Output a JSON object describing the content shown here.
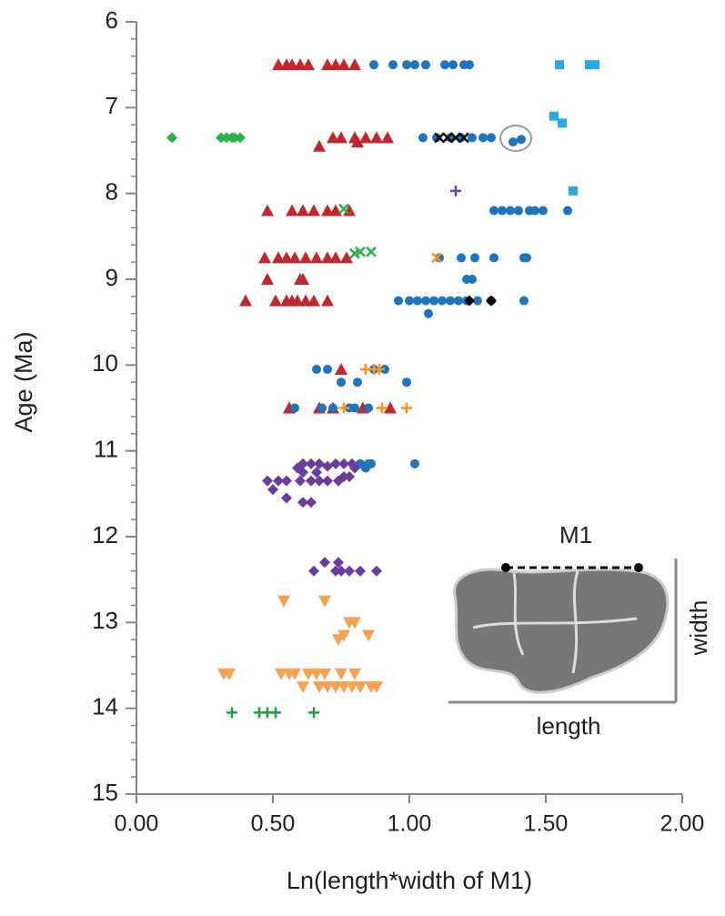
{
  "chart_data": {
    "type": "scatter",
    "x_label": "Ln(length*width of M1)",
    "y_label": "Age (Ma)",
    "xlim": [
      0,
      2
    ],
    "ylim": [
      6,
      15
    ],
    "y_inverted": true,
    "xticks": [
      {
        "value": 0,
        "label": "0.00"
      },
      {
        "value": 0.5,
        "label": "0.50"
      },
      {
        "value": 1,
        "label": "1.00"
      },
      {
        "value": 1.5,
        "label": "1.50"
      },
      {
        "value": 2,
        "label": "2.00"
      }
    ],
    "yticks": [
      6,
      7,
      8,
      9,
      10,
      11,
      12,
      13,
      14,
      15
    ],
    "y_minor_ticks": [
      6.2,
      6.4,
      6.6,
      6.8,
      7.2,
      7.4,
      7.6,
      7.8,
      8.2,
      8.4,
      8.6,
      8.8,
      9.2,
      9.4,
      9.6,
      9.8,
      10.2,
      10.4,
      10.6,
      10.8,
      11.2,
      11.4,
      11.6,
      11.8,
      12.2,
      12.4,
      12.6,
      12.8,
      13.2,
      13.4,
      13.6,
      13.8,
      14.2,
      14.4,
      14.6,
      14.8
    ],
    "inset_labels": {
      "tooth": "M1",
      "width": "width",
      "length": "length"
    },
    "series": [
      {
        "marker": "triangle",
        "color": "#c1272d",
        "x": [
          0.52,
          0.55,
          0.57,
          0.6,
          0.63,
          0.7,
          0.73,
          0.76,
          0.8,
          0.72,
          0.75,
          0.8,
          0.84,
          0.88,
          0.92,
          0.67,
          0.81,
          0.48,
          0.57,
          0.61,
          0.65,
          0.7,
          0.73,
          0.78,
          0.47,
          0.52,
          0.55,
          0.58,
          0.62,
          0.66,
          0.7,
          0.73,
          0.77,
          0.48,
          0.6,
          0.61,
          0.4,
          0.51,
          0.55,
          0.57,
          0.59,
          0.62,
          0.65,
          0.7,
          0.75,
          0.56,
          0.67,
          0.72,
          0.83,
          0.93
        ],
        "values": [
          6.5,
          6.5,
          6.5,
          6.5,
          6.5,
          6.5,
          6.5,
          6.5,
          6.5,
          7.35,
          7.35,
          7.35,
          7.35,
          7.35,
          7.35,
          7.45,
          7.4,
          8.2,
          8.2,
          8.2,
          8.2,
          8.2,
          8.2,
          8.2,
          8.75,
          8.75,
          8.75,
          8.75,
          8.75,
          8.75,
          8.75,
          8.75,
          8.75,
          9.0,
          9.0,
          9.0,
          9.25,
          9.25,
          9.25,
          9.25,
          9.25,
          9.25,
          9.25,
          9.25,
          10.05,
          10.5,
          10.5,
          10.5,
          10.5,
          10.5
        ]
      },
      {
        "marker": "circle",
        "color": "#1f75bc",
        "x": [
          0.87,
          0.94,
          0.99,
          1.02,
          1.06,
          1.13,
          1.16,
          1.2,
          1.22,
          1.05,
          1.1,
          1.15,
          1.19,
          1.23,
          1.27,
          1.3,
          1.38,
          1.41,
          1.31,
          1.34,
          1.37,
          1.4,
          1.44,
          1.46,
          1.49,
          1.58,
          1.11,
          1.19,
          1.24,
          1.31,
          1.42,
          1.43,
          1.21,
          1.23,
          0.96,
          1.0,
          1.03,
          1.06,
          1.09,
          1.12,
          1.15,
          1.18,
          1.21,
          1.25,
          1.3,
          1.42,
          1.07,
          0.66,
          0.7,
          0.87,
          0.91,
          0.75,
          0.81,
          0.99,
          0.58,
          0.68,
          0.72,
          0.78,
          0.8,
          0.85,
          0.82,
          0.85,
          0.86,
          1.02,
          0.84
        ],
        "values": [
          6.5,
          6.5,
          6.5,
          6.5,
          6.5,
          6.5,
          6.5,
          6.5,
          6.5,
          7.35,
          7.35,
          7.35,
          7.35,
          7.35,
          7.35,
          7.35,
          7.4,
          7.37,
          8.2,
          8.2,
          8.2,
          8.2,
          8.2,
          8.2,
          8.2,
          8.2,
          8.75,
          8.75,
          8.75,
          8.75,
          8.75,
          8.75,
          9.0,
          9.0,
          9.25,
          9.25,
          9.25,
          9.25,
          9.25,
          9.25,
          9.25,
          9.25,
          9.25,
          9.25,
          9.25,
          9.25,
          9.4,
          10.05,
          10.05,
          10.05,
          10.05,
          10.2,
          10.2,
          10.2,
          10.5,
          10.5,
          10.5,
          10.5,
          10.5,
          10.5,
          11.15,
          11.15,
          11.15,
          11.15,
          11.2
        ]
      },
      {
        "marker": "square",
        "color": "#29aae1",
        "x": [
          1.55,
          1.66,
          1.68,
          1.53,
          1.56,
          1.6
        ],
        "values": [
          6.5,
          6.5,
          6.5,
          7.1,
          7.18,
          7.97
        ]
      },
      {
        "marker": "diamond",
        "color": "#2bb34a",
        "x": [
          0.13,
          0.31,
          0.33,
          0.35,
          0.36,
          0.38
        ],
        "values": [
          7.35,
          7.35,
          7.35,
          7.35,
          7.35,
          7.35
        ]
      },
      {
        "marker": "x",
        "color": "#2bb34a",
        "x": [
          0.76,
          0.8,
          0.82,
          0.86
        ],
        "values": [
          8.18,
          8.7,
          8.68,
          8.68
        ]
      },
      {
        "marker": "x",
        "color": "#000000",
        "x": [
          1.11,
          1.14,
          1.17,
          1.2
        ],
        "values": [
          7.35,
          7.35,
          7.35,
          7.35
        ]
      },
      {
        "marker": "plus",
        "color": "#7b3f9e",
        "x": [
          1.17
        ],
        "values": [
          7.97
        ]
      },
      {
        "marker": "x",
        "color": "#f7941d",
        "x": [
          1.1
        ],
        "values": [
          8.75
        ]
      },
      {
        "marker": "diamond",
        "color": "#000000",
        "x": [
          1.22,
          1.3
        ],
        "values": [
          9.25,
          9.25
        ]
      },
      {
        "marker": "plus",
        "color": "#f7941d",
        "x": [
          0.84,
          0.87,
          0.89,
          0.76,
          0.9,
          0.99
        ],
        "values": [
          10.05,
          10.05,
          10.05,
          10.5,
          10.5,
          10.5
        ]
      },
      {
        "marker": "diamond",
        "color": "#6a3d9a",
        "x": [
          0.59,
          0.61,
          0.64,
          0.67,
          0.7,
          0.73,
          0.76,
          0.79,
          0.8,
          0.48,
          0.52,
          0.55,
          0.6,
          0.64,
          0.67,
          0.7,
          0.74,
          0.76,
          0.78,
          0.61,
          0.66,
          0.5,
          0.55,
          0.61,
          0.64,
          0.65,
          0.69,
          0.74,
          0.75,
          0.78,
          0.82,
          0.88,
          0.73
        ],
        "values": [
          11.2,
          11.15,
          11.15,
          11.15,
          11.18,
          11.15,
          11.15,
          11.15,
          11.2,
          11.35,
          11.35,
          11.35,
          11.35,
          11.35,
          11.35,
          11.35,
          11.35,
          11.3,
          11.3,
          11.25,
          11.25,
          11.45,
          11.55,
          11.6,
          11.6,
          12.4,
          12.3,
          12.3,
          12.4,
          12.4,
          12.4,
          12.4,
          12.4
        ]
      },
      {
        "marker": "triangle-down",
        "color": "#f7a253",
        "x": [
          0.54,
          0.69,
          0.78,
          0.8,
          0.76,
          0.85,
          0.74,
          0.32,
          0.34,
          0.53,
          0.56,
          0.58,
          0.63,
          0.66,
          0.69,
          0.75,
          0.8,
          0.61,
          0.67,
          0.7,
          0.73,
          0.76,
          0.79,
          0.82,
          0.86,
          0.88
        ],
        "values": [
          12.75,
          12.75,
          13.0,
          13.0,
          13.15,
          13.15,
          13.2,
          13.6,
          13.6,
          13.6,
          13.6,
          13.6,
          13.6,
          13.6,
          13.6,
          13.6,
          13.6,
          13.75,
          13.75,
          13.75,
          13.75,
          13.75,
          13.75,
          13.75,
          13.75,
          13.75
        ]
      },
      {
        "marker": "plus",
        "color": "#1b9e49",
        "x": [
          0.35,
          0.45,
          0.48,
          0.51,
          0.65
        ],
        "values": [
          14.05,
          14.05,
          14.05,
          14.05,
          14.05
        ]
      }
    ]
  }
}
